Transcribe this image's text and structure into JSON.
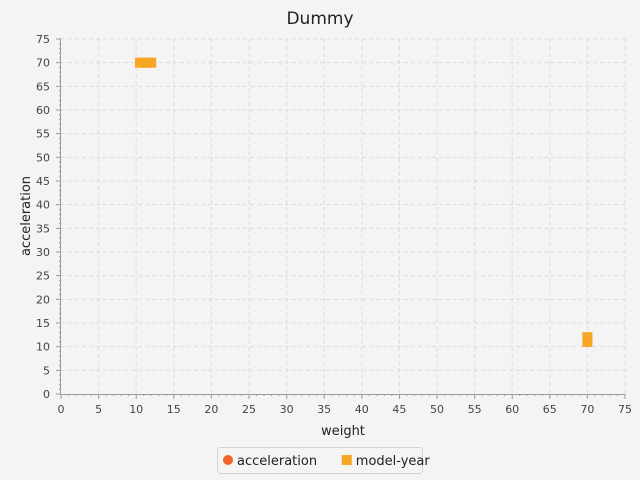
{
  "chart_data": {
    "type": "scatter",
    "title": "Dummy",
    "xlabel": "weight",
    "ylabel": "acceleration",
    "xlim": [
      0,
      75
    ],
    "ylim": [
      0,
      75
    ],
    "x_ticks": [
      0,
      5,
      10,
      15,
      20,
      25,
      30,
      35,
      40,
      45,
      50,
      55,
      60,
      65,
      70,
      75
    ],
    "y_ticks": [
      0,
      5,
      10,
      15,
      20,
      25,
      30,
      35,
      40,
      45,
      50,
      55,
      60,
      65,
      70,
      75
    ],
    "grid": true,
    "legend_position": "bottom-center",
    "series": [
      {
        "name": "acceleration",
        "color": "#f0622e",
        "marker": "circle",
        "points": []
      },
      {
        "name": "model-year",
        "color": "#f5a623",
        "marker": "square",
        "points": [
          {
            "x": 10.5,
            "y": 70
          },
          {
            "x": 11.0,
            "y": 70
          },
          {
            "x": 11.5,
            "y": 70
          },
          {
            "x": 12.0,
            "y": 70
          },
          {
            "x": 70,
            "y": 11
          },
          {
            "x": 70,
            "y": 12
          }
        ]
      }
    ]
  }
}
